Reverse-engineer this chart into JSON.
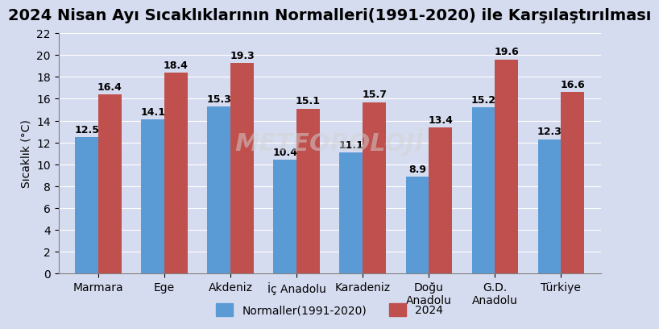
{
  "title": "2024 Nisan Ayı Sıcaklıklarının Normalleri(1991-2020) ile Karşılaştırılması",
  "categories": [
    "Marmara",
    "Ege",
    "Akdeniz",
    "İç Anadolu",
    "Karadeniz",
    "Doğu\nAnadolu",
    "G.D.\nAnadolu",
    "Türkiye"
  ],
  "normals": [
    12.5,
    14.1,
    15.3,
    10.4,
    11.1,
    8.9,
    15.2,
    12.3
  ],
  "year2024": [
    16.4,
    18.4,
    19.3,
    15.1,
    15.7,
    13.4,
    19.6,
    16.6
  ],
  "color_normal": "#5B9BD5",
  "color_2024": "#C0504D",
  "ylabel": "Sıcaklık (°C)",
  "ylim": [
    0,
    22
  ],
  "yticks": [
    0,
    2,
    4,
    6,
    8,
    10,
    12,
    14,
    16,
    18,
    20,
    22
  ],
  "legend_normal": "Normaller(1991-2020)",
  "legend_2024": "2024",
  "bg_color": "#D6DCF0",
  "plot_bg_color": "#D6DCF0",
  "title_fontsize": 14,
  "label_fontsize": 9,
  "axis_fontsize": 10,
  "legend_fontsize": 10,
  "bar_width": 0.35,
  "watermark": "METEOROLOJİ"
}
